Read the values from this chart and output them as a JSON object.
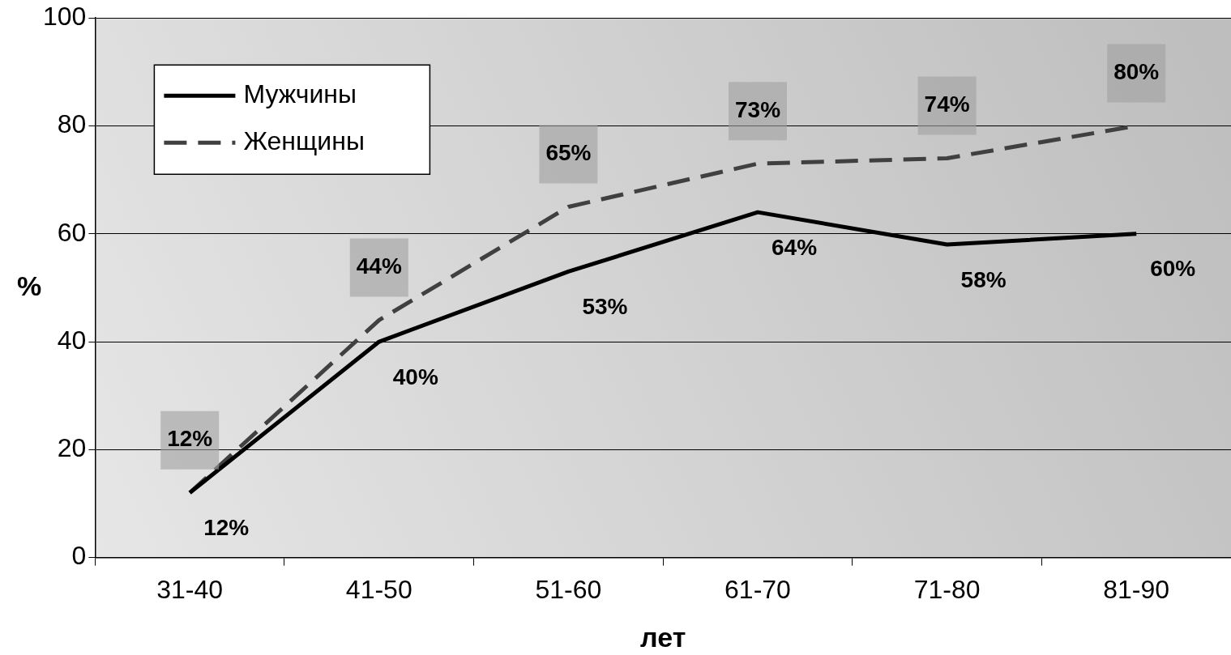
{
  "chart_data": {
    "type": "line",
    "xlabel": "лет",
    "ylabel": "%",
    "categories": [
      "31-40",
      "41-50",
      "51-60",
      "61-70",
      "71-80",
      "81-90"
    ],
    "series": [
      {
        "name": "Мужчины",
        "color": "#000000",
        "line_style": "solid",
        "values": [
          12,
          40,
          53,
          64,
          58,
          60
        ],
        "value_labels": [
          "12%",
          "40%",
          "53%",
          "64%",
          "58%",
          "60%"
        ]
      },
      {
        "name": "Женщины",
        "color": "#404040",
        "line_style": "dashed",
        "values": [
          12,
          44,
          65,
          73,
          74,
          80
        ],
        "value_labels": [
          "12%",
          "44%",
          "65%",
          "73%",
          "74%",
          "80%"
        ]
      }
    ],
    "ylim": [
      0,
      100
    ],
    "yticks": [
      0,
      20,
      40,
      60,
      80,
      100
    ],
    "grid": "y",
    "legend": "top left",
    "marker": "none"
  }
}
